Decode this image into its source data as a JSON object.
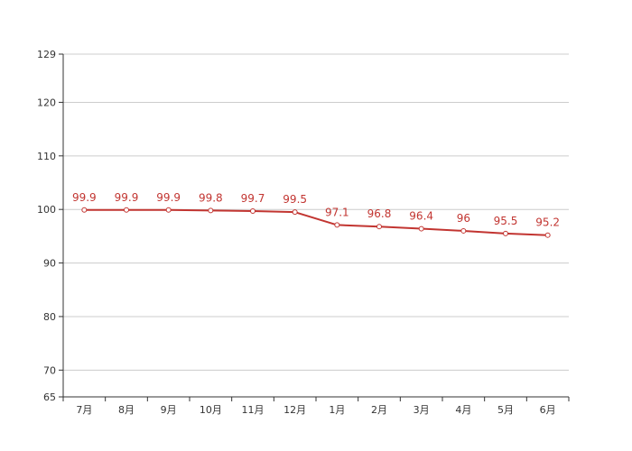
{
  "chart_data": {
    "type": "line",
    "categories": [
      "7月",
      "8月",
      "9月",
      "10月",
      "11月",
      "12月",
      "1月",
      "2月",
      "3月",
      "4月",
      "5月",
      "6月"
    ],
    "series": [
      {
        "values": [
          99.9,
          99.9,
          99.9,
          99.8,
          99.7,
          99.5,
          97.1,
          96.8,
          96.4,
          96,
          95.5,
          95.2
        ],
        "color": "#c23531"
      }
    ],
    "data_labels": [
      "99.9",
      "99.9",
      "99.9",
      "99.8",
      "99.7",
      "99.5",
      "97.1",
      "96.8",
      "96.4",
      "96",
      "95.5",
      "95.2"
    ],
    "y_ticks": [
      65,
      70,
      80,
      90,
      100,
      110,
      120,
      129
    ],
    "y_tick_labels": [
      "65",
      "70",
      "80",
      "90",
      "100",
      "110",
      "120",
      "129"
    ],
    "ylim": [
      65,
      129
    ],
    "grid": true,
    "legend": "none",
    "colors": {
      "line": "#c23531",
      "grid": "#cccccc",
      "axis": "#333333",
      "text": "#333333",
      "marker_fill": "#ffffff"
    }
  }
}
